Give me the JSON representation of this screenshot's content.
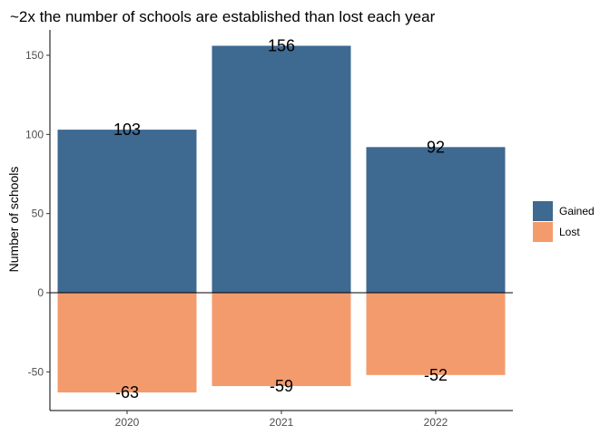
{
  "chart_data": {
    "type": "bar",
    "title": "~2x the number of schools are established than lost each year",
    "xlabel": "",
    "ylabel": "Number of schools",
    "categories": [
      "2020",
      "2021",
      "2022"
    ],
    "series": [
      {
        "name": "Gained",
        "values": [
          103,
          156,
          92
        ],
        "color": "#3e6990"
      },
      {
        "name": "Lost",
        "values": [
          -63,
          -59,
          -52
        ],
        "color": "#f39b6d"
      }
    ],
    "data_labels": {
      "Gained": [
        "103",
        "156",
        "92"
      ],
      "Lost": [
        "-63",
        "-59",
        "-52"
      ]
    },
    "y_ticks": [
      -50,
      0,
      50,
      100,
      150
    ],
    "ylim": [
      -75,
      168
    ],
    "grid": false,
    "stacked": true,
    "legend": "right"
  }
}
